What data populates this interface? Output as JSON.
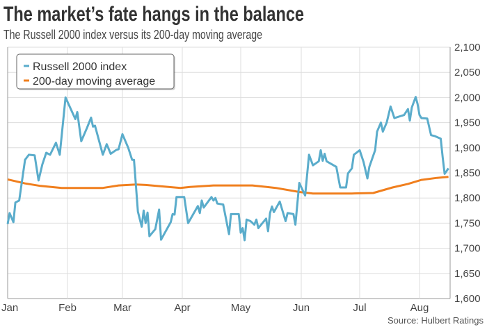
{
  "chart_data": {
    "type": "line",
    "title": "The market’s fate hangs in the balance",
    "subtitle": "The Russell 2000 index versus its 200-day moving average",
    "source": "Source: Hulbert Ratings",
    "x_tick_labels": [
      "Jan",
      "Feb",
      "Mar",
      "Apr",
      "May",
      "Jun",
      "Jul",
      "Aug"
    ],
    "y_tick_labels": [
      "1,600",
      "1,650",
      "1,700",
      "1,750",
      "1,800",
      "1,850",
      "1,900",
      "1,950",
      "2,000",
      "2,050",
      "2,100"
    ],
    "ylim": [
      1600,
      2100
    ],
    "y_axis_side": "right",
    "grid": true,
    "legend_placement": "top-left",
    "series": [
      {
        "name": "Russell 2000 index",
        "color": "#5aaccb",
        "points": [
          [
            "01-01",
            1748
          ],
          [
            "01-02",
            1770
          ],
          [
            "01-04",
            1752
          ],
          [
            "01-05",
            1791
          ],
          [
            "01-07",
            1795
          ],
          [
            "01-10",
            1876
          ],
          [
            "01-12",
            1886
          ],
          [
            "01-15",
            1885
          ],
          [
            "01-17",
            1835
          ],
          [
            "01-19",
            1867
          ],
          [
            "01-21",
            1890
          ],
          [
            "01-23",
            1886
          ],
          [
            "01-26",
            1910
          ],
          [
            "01-28",
            1886
          ],
          [
            "01-31",
            2000
          ],
          [
            "02-05",
            1957
          ],
          [
            "02-06",
            1971
          ],
          [
            "02-08",
            1913
          ],
          [
            "02-11",
            1940
          ],
          [
            "02-13",
            1960
          ],
          [
            "02-14",
            1942
          ],
          [
            "02-15",
            1944
          ],
          [
            "02-19",
            1886
          ],
          [
            "02-21",
            1907
          ],
          [
            "02-23",
            1888
          ],
          [
            "02-26",
            1896
          ],
          [
            "02-27",
            1897
          ],
          [
            "03-01",
            1927
          ],
          [
            "03-04",
            1900
          ],
          [
            "03-06",
            1876
          ],
          [
            "03-07",
            1876
          ],
          [
            "03-09",
            1773
          ],
          [
            "03-11",
            1743
          ],
          [
            "03-12",
            1775
          ],
          [
            "03-13",
            1750
          ],
          [
            "03-14",
            1771
          ],
          [
            "03-15",
            1724
          ],
          [
            "03-18",
            1738
          ],
          [
            "03-20",
            1777
          ],
          [
            "03-21",
            1717
          ],
          [
            "03-23",
            1731
          ],
          [
            "03-26",
            1752
          ],
          [
            "03-27",
            1768
          ],
          [
            "03-28",
            1767
          ],
          [
            "03-29",
            1802
          ],
          [
            "04-02",
            1802
          ],
          [
            "04-04",
            1750
          ],
          [
            "04-09",
            1784
          ],
          [
            "04-10",
            1770
          ],
          [
            "04-11",
            1795
          ],
          [
            "04-12",
            1781
          ],
          [
            "04-16",
            1802
          ],
          [
            "04-17",
            1795
          ],
          [
            "04-18",
            1800
          ],
          [
            "04-19",
            1789
          ],
          [
            "04-22",
            1787
          ],
          [
            "04-25",
            1728
          ],
          [
            "04-26",
            1768
          ],
          [
            "04-30",
            1768
          ],
          [
            "05-01",
            1731
          ],
          [
            "05-02",
            1740
          ],
          [
            "05-03",
            1716
          ],
          [
            "05-04",
            1757
          ],
          [
            "05-06",
            1754
          ],
          [
            "05-08",
            1747
          ],
          [
            "05-09",
            1757
          ],
          [
            "05-10",
            1740
          ],
          [
            "05-14",
            1759
          ],
          [
            "05-15",
            1734
          ],
          [
            "05-16",
            1770
          ],
          [
            "05-17",
            1783
          ],
          [
            "05-18",
            1772
          ],
          [
            "05-21",
            1793
          ],
          [
            "05-24",
            1754
          ],
          [
            "05-25",
            1770
          ],
          [
            "05-28",
            1768
          ],
          [
            "05-29",
            1747
          ],
          [
            "05-31",
            1830
          ],
          [
            "06-03",
            1805
          ],
          [
            "06-05",
            1886
          ],
          [
            "06-07",
            1865
          ],
          [
            "06-10",
            1873
          ],
          [
            "06-11",
            1895
          ],
          [
            "06-12",
            1874
          ],
          [
            "06-13",
            1888
          ],
          [
            "06-14",
            1873
          ],
          [
            "06-19",
            1862
          ],
          [
            "06-21",
            1821
          ],
          [
            "06-24",
            1821
          ],
          [
            "06-25",
            1849
          ],
          [
            "06-27",
            1859
          ],
          [
            "06-28",
            1886
          ],
          [
            "07-01",
            1895
          ],
          [
            "07-03",
            1872
          ],
          [
            "07-05",
            1839
          ],
          [
            "07-06",
            1862
          ],
          [
            "07-09",
            1895
          ],
          [
            "07-10",
            1932
          ],
          [
            "07-12",
            1950
          ],
          [
            "07-13",
            1932
          ],
          [
            "07-15",
            1950
          ],
          [
            "07-17",
            1982
          ],
          [
            "07-19",
            1959
          ],
          [
            "07-23",
            1964
          ],
          [
            "07-24",
            1965
          ],
          [
            "07-26",
            1977
          ],
          [
            "07-27",
            1954
          ],
          [
            "07-28",
            1980
          ],
          [
            "07-30",
            2001
          ],
          [
            "07-31",
            1987
          ],
          [
            "08-01",
            1965
          ],
          [
            "08-02",
            1959
          ],
          [
            "08-05",
            1958
          ],
          [
            "08-07",
            1925
          ],
          [
            "08-09",
            1923
          ],
          [
            "08-12",
            1918
          ],
          [
            "08-13",
            1881
          ],
          [
            "08-14",
            1848
          ],
          [
            "08-16",
            1859
          ]
        ]
      },
      {
        "name": "200-day moving average",
        "color": "#f07f1e",
        "points": [
          [
            "01-01",
            1837
          ],
          [
            "01-10",
            1829
          ],
          [
            "01-18",
            1824
          ],
          [
            "01-29",
            1820
          ],
          [
            "02-19",
            1820
          ],
          [
            "02-27",
            1825
          ],
          [
            "03-08",
            1827
          ],
          [
            "03-13",
            1826
          ],
          [
            "03-31",
            1820
          ],
          [
            "04-05",
            1822
          ],
          [
            "04-17",
            1825
          ],
          [
            "04-25",
            1825
          ],
          [
            "05-07",
            1825
          ],
          [
            "05-19",
            1820
          ],
          [
            "05-31",
            1812
          ],
          [
            "06-07",
            1809
          ],
          [
            "06-27",
            1809
          ],
          [
            "07-08",
            1810
          ],
          [
            "07-18",
            1821
          ],
          [
            "07-26",
            1828
          ],
          [
            "08-02",
            1836
          ],
          [
            "08-10",
            1840
          ],
          [
            "08-16",
            1842
          ]
        ]
      }
    ]
  }
}
